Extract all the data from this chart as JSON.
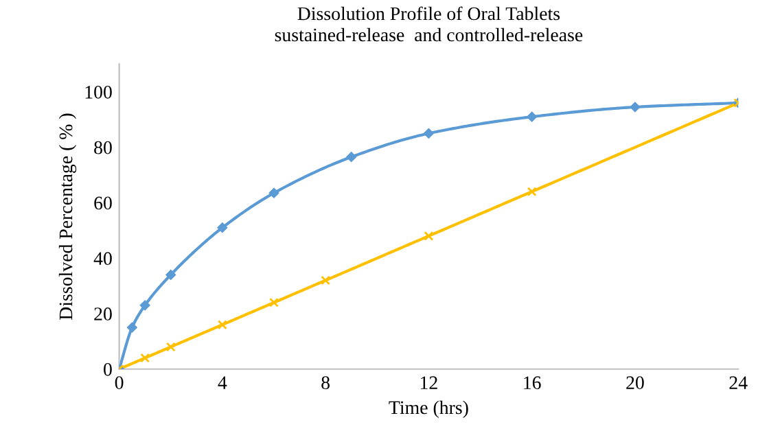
{
  "chart_data": {
    "type": "line",
    "title": "Dissolution Profile of Oral Tablets\nsustained-release  and controlled-release",
    "xlabel": "Time (hrs)",
    "ylabel": "Dissolved Percentage ( % )",
    "series": [
      {
        "color": "#5b9bd5",
        "marker": "diamond",
        "x": [
          0,
          0.5,
          1,
          2,
          4,
          6,
          9,
          12,
          16,
          20,
          24
        ],
        "values": [
          0,
          15,
          23,
          34,
          51,
          63.5,
          76.5,
          85,
          91,
          94.5,
          96
        ]
      },
      {
        "color": "#ffc000",
        "marker": "cross",
        "x": [
          0,
          1,
          2,
          4,
          6,
          8,
          12,
          16,
          24
        ],
        "values": [
          0,
          4,
          8,
          16,
          24,
          32,
          48,
          64,
          96
        ]
      }
    ],
    "xlim": [
      0,
      24
    ],
    "xticks": [
      0,
      4,
      8,
      12,
      16,
      20,
      24
    ],
    "ylim": [
      0,
      110
    ],
    "yticks": [
      0,
      20,
      40,
      60,
      80,
      100
    ],
    "grid": false,
    "legend": false
  }
}
